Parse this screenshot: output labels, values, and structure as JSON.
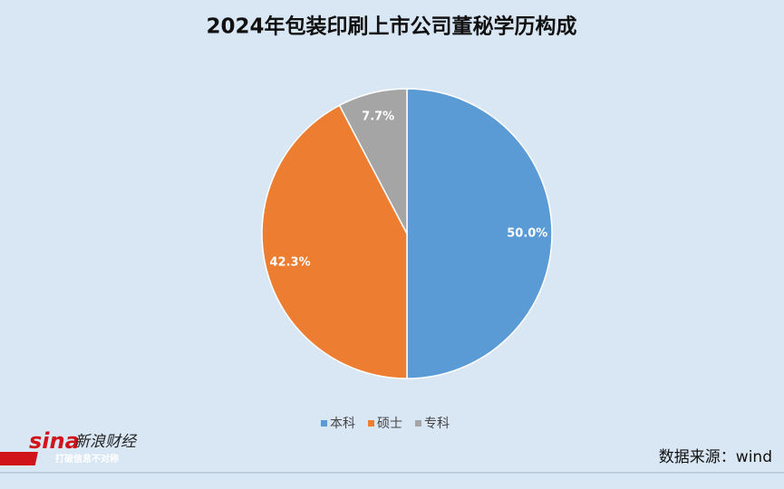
{
  "chart_data": {
    "type": "pie",
    "title": "2024年包装印刷上市公司董秘学历构成",
    "categories": [
      "本科",
      "硕士",
      "专科"
    ],
    "values": [
      50.0,
      42.3,
      7.7
    ],
    "value_labels": [
      "50.0%",
      "42.3%",
      "7.7%"
    ],
    "colors": [
      "#5b9bd5",
      "#ed7d31",
      "#a5a5a5"
    ],
    "legend": "bottom"
  },
  "logo": {
    "brand": "sina",
    "name": "新浪财经",
    "slogan": "打破信息不对称"
  },
  "source": "数据来源：wind"
}
